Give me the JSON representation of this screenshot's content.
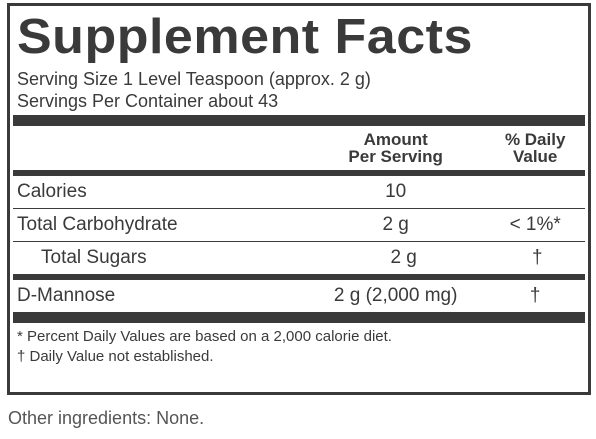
{
  "title": "Supplement Facts",
  "serving_size": "Serving Size 1 Level Teaspoon (approx. 2 g)",
  "servings_per_container": "Servings Per Container about 43",
  "header": {
    "amount": [
      "Amount",
      "Per Serving"
    ],
    "daily_value": [
      "% Daily",
      "Value"
    ]
  },
  "rows": [
    [
      "Calories",
      "10",
      ""
    ],
    [
      "Total Carbohydrate",
      "2 g",
      "< 1%*"
    ],
    [
      "Total Sugars",
      "2 g",
      "†"
    ],
    [
      "D-Mannose",
      "2 g (2,000 mg)",
      "†"
    ]
  ],
  "footnotes": [
    "* Percent Daily Values are based on a 2,000 calorie diet.",
    "† Daily Value not established."
  ],
  "other_ingredients": "Other ingredients: None."
}
